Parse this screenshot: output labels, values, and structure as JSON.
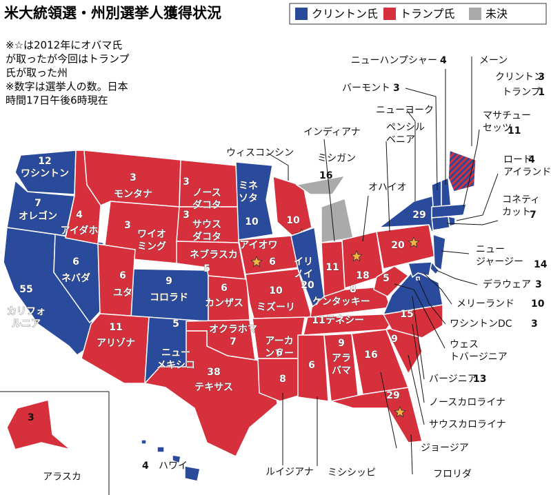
{
  "header": {
    "title": "米大統領選・州別選挙人獲得状況"
  },
  "legend": [
    {
      "label": "クリントン氏",
      "color": "#2a4a9c"
    },
    {
      "label": "トランプ氏",
      "color": "#d5303b"
    },
    {
      "label": "未決",
      "color": "#aaaaaa"
    }
  ],
  "notes": [
    "※☆は2012年にオバマ氏",
    "が取ったが今回はトランプ",
    "氏が取った州",
    "※数字は選挙人の数。日本",
    "時間17日午後6時現在"
  ],
  "states": [
    {
      "name": "ワシントン",
      "votes": 12,
      "winner": 0
    },
    {
      "name": "オレゴン",
      "votes": 7,
      "winner": 0
    },
    {
      "name": "カリフォルニア",
      "votes": 55,
      "winner": 0
    },
    {
      "name": "ネバダ",
      "votes": 6,
      "winner": 0
    },
    {
      "name": "アイダホ",
      "votes": 4,
      "winner": 1
    },
    {
      "name": "モンタナ",
      "votes": 3,
      "winner": 1
    },
    {
      "name": "ワイオミング",
      "votes": 3,
      "winner": 1
    },
    {
      "name": "ユタ",
      "votes": 6,
      "winner": 1
    },
    {
      "name": "コロラド",
      "votes": 9,
      "winner": 0
    },
    {
      "name": "アリゾナ",
      "votes": 11,
      "winner": 1
    },
    {
      "name": "ニューメキシコ",
      "votes": 5,
      "winner": 0
    },
    {
      "name": "ノースダコタ",
      "votes": 3,
      "winner": 1
    },
    {
      "name": "サウスダコタ",
      "votes": 3,
      "winner": 1
    },
    {
      "name": "ネブラスカ",
      "votes": 5,
      "winner": 1
    },
    {
      "name": "カンザス",
      "votes": 6,
      "winner": 1
    },
    {
      "name": "オクラホマ",
      "votes": 7,
      "winner": 1
    },
    {
      "name": "テキサス",
      "votes": 38,
      "winner": 1
    },
    {
      "name": "ミネソタ",
      "votes": 10,
      "winner": 0
    },
    {
      "name": "アイオワ",
      "votes": 6,
      "winner": 1,
      "flipped": true
    },
    {
      "name": "ミズーリ",
      "votes": 10,
      "winner": 1
    },
    {
      "name": "アーカンソー",
      "votes": 6,
      "winner": 1
    },
    {
      "name": "ルイジアナ",
      "votes": 8,
      "winner": 1
    },
    {
      "name": "ウィスコンシン",
      "votes": 10,
      "winner": 1,
      "flipped": true
    },
    {
      "name": "イリノイ",
      "votes": 20,
      "winner": 0
    },
    {
      "name": "ミシガン",
      "votes": 16,
      "winner": 2
    },
    {
      "name": "インディアナ",
      "votes": 11,
      "winner": 1
    },
    {
      "name": "オハイオ",
      "votes": 18,
      "winner": 1,
      "flipped": true
    },
    {
      "name": "ケンタッキー",
      "votes": 8,
      "winner": 1
    },
    {
      "name": "テネシー",
      "votes": 11,
      "winner": 1
    },
    {
      "name": "ミシシッピ",
      "votes": 6,
      "winner": 1
    },
    {
      "name": "アラバマ",
      "votes": 9,
      "winner": 1
    },
    {
      "name": "ジョージア",
      "votes": 16,
      "winner": 1
    },
    {
      "name": "フロリダ",
      "votes": 29,
      "winner": 1,
      "flipped": true
    },
    {
      "name": "サウスカロライナ",
      "votes": 9,
      "winner": 1
    },
    {
      "name": "ノースカロライナ",
      "votes": 15,
      "winner": 1
    },
    {
      "name": "バージニア",
      "votes": 13,
      "winner": 0
    },
    {
      "name": "ウェストバージニア",
      "votes": 5,
      "winner": 1
    },
    {
      "name": "ペンシルベニア",
      "votes": 20,
      "winner": 1,
      "flipped": true
    },
    {
      "name": "ニューヨーク",
      "votes": 29,
      "winner": 0
    },
    {
      "name": "バーモント",
      "votes": 3,
      "winner": 0
    },
    {
      "name": "ニューハンプシャー",
      "votes": 4,
      "winner": 0
    },
    {
      "name": "メーン",
      "split": [
        {
          "name": "クリントン",
          "votes": 3,
          "winner": 0
        },
        {
          "name": "トランプ",
          "votes": 1,
          "winner": 1
        }
      ]
    },
    {
      "name": "マサチューセッツ",
      "votes": 11,
      "winner": 0
    },
    {
      "name": "ロードアイランド",
      "votes": 4,
      "winner": 0
    },
    {
      "name": "コネティカット",
      "votes": 7,
      "winner": 0
    },
    {
      "name": "ニュージャージー",
      "votes": 14,
      "winner": 0
    },
    {
      "name": "デラウェア",
      "votes": 3,
      "winner": 0
    },
    {
      "name": "メリーランド",
      "votes": 10,
      "winner": 0
    },
    {
      "name": "ワシントンDC",
      "votes": 3,
      "winner": 0
    },
    {
      "name": "アラスカ",
      "votes": 3,
      "winner": 1
    },
    {
      "name": "ハワイ",
      "votes": 4,
      "winner": 0
    }
  ]
}
